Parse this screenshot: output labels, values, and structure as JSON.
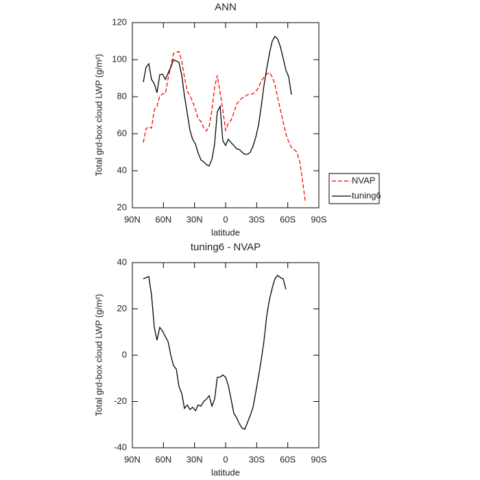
{
  "chart_data": [
    {
      "type": "line",
      "title": "ANN",
      "xlabel": "latitude",
      "ylabel": "Total grd-box cloud LWP (g/m²)",
      "xlim": [
        90,
        -90
      ],
      "xticks": [
        {
          "value": 90,
          "label": "90N"
        },
        {
          "value": 60,
          "label": "60N"
        },
        {
          "value": 30,
          "label": "30N"
        },
        0,
        {
          "value": -30,
          "label": "30S"
        },
        {
          "value": -60,
          "label": "60S"
        },
        {
          "value": -90,
          "label": "90S"
        }
      ],
      "ylim": [
        20,
        120
      ],
      "yticks": [
        20,
        40,
        60,
        80,
        100,
        120
      ],
      "legend": "right",
      "x": [
        79.4,
        76.8,
        74.1,
        71.5,
        68.8,
        66.2,
        63.5,
        60.9,
        58.2,
        55.6,
        52.9,
        50.3,
        47.6,
        45,
        42.3,
        39.7,
        37,
        34.4,
        31.8,
        29.1,
        26.5,
        23.8,
        21.2,
        18.5,
        15.9,
        13.2,
        10.6,
        8,
        5.3,
        2.7,
        0,
        -2.6,
        -5.3,
        -7.9,
        -10.6,
        -13.2,
        -15.9,
        -18.5,
        -21.2,
        -23.8,
        -26.5,
        -29.1,
        -31.8,
        -34.4,
        -37,
        -39.7,
        -42.3,
        -45,
        -47.6,
        -50.3,
        -52.9,
        -55.6,
        -58.2,
        -60.9,
        -63.5,
        -66.2,
        -68.8,
        -71.5,
        -74.1,
        -76.8
      ],
      "series": [
        {
          "name": "NVAP",
          "color": "#ff0000",
          "line_style": "dashed",
          "values": [
            55.2,
            62.6,
            63.7,
            63,
            73,
            74.8,
            80.4,
            81.5,
            81.5,
            89.6,
            96.3,
            103.3,
            104,
            104.4,
            99,
            90.7,
            83,
            80.4,
            77.4,
            73,
            68.1,
            66.7,
            63.3,
            61.5,
            63.7,
            73,
            85.2,
            91.5,
            82.2,
            73,
            61.9,
            65.6,
            67.4,
            71.1,
            75.9,
            77.8,
            79.3,
            80,
            81.1,
            81.5,
            81.5,
            83,
            84.8,
            88.5,
            90.4,
            92.2,
            93,
            90.7,
            86.7,
            79.3,
            73,
            66.3,
            60,
            55.6,
            52.6,
            51.5,
            50,
            45.2,
            35.2,
            23.7
          ]
        },
        {
          "name": "tuning6",
          "color": "#000000",
          "line_style": "solid",
          "values": [
            87.8,
            95.9,
            97.8,
            89.3,
            87,
            82.2,
            91.9,
            92.2,
            89.3,
            92.6,
            95.9,
            100,
            99.3,
            98.5,
            91.5,
            80.4,
            71.1,
            61.9,
            57,
            54.4,
            49.6,
            45.9,
            44.8,
            43.3,
            42.6,
            46.3,
            54.4,
            71.9,
            74.8,
            56.3,
            53.7,
            57,
            55.2,
            53.7,
            51.9,
            51.5,
            50,
            48.9,
            48.9,
            50,
            53.3,
            58.1,
            64.8,
            74.8,
            85.9,
            95.2,
            103.3,
            110,
            112.6,
            111.1,
            107,
            100.7,
            94.4,
            90.7,
            81.1,
            null,
            null,
            null,
            null,
            null
          ]
        }
      ]
    },
    {
      "type": "line",
      "title": "tuning6 - NVAP",
      "xlabel": "latitude",
      "ylabel": "Total grd-box cloud LWP (g/m²)",
      "xlim": [
        90,
        -90
      ],
      "xticks": [
        {
          "value": 90,
          "label": "90N"
        },
        {
          "value": 60,
          "label": "60N"
        },
        {
          "value": 30,
          "label": "30N"
        },
        0,
        {
          "value": -30,
          "label": "30S"
        },
        {
          "value": -60,
          "label": "60S"
        },
        {
          "value": -90,
          "label": "90S"
        }
      ],
      "ylim": [
        -40,
        40
      ],
      "yticks": [
        -40,
        -20,
        0,
        20,
        40
      ],
      "x": [
        79.4,
        76.8,
        74.1,
        71.5,
        68.8,
        66.2,
        63.5,
        60.9,
        58.2,
        55.6,
        52.9,
        50.3,
        47.6,
        45,
        42.3,
        39.7,
        37,
        34.4,
        31.8,
        29.1,
        26.5,
        23.8,
        21.2,
        18.5,
        15.9,
        13.2,
        10.6,
        8,
        5.3,
        2.7,
        0,
        -2.6,
        -5.3,
        -7.9,
        -10.6,
        -13.2,
        -15.9,
        -18.5,
        -21.2,
        -23.8,
        -26.5,
        -29.1,
        -31.8,
        -34.4,
        -37,
        -39.7,
        -42.3,
        -45,
        -47.6,
        -50.3,
        -52.9,
        -55.6,
        -58.2
      ],
      "series": [
        {
          "color": "#000000",
          "line_style": "solid",
          "values": [
            33,
            33.5,
            34,
            26,
            12,
            6.5,
            12,
            10.5,
            8,
            6,
            0,
            -4.5,
            -6,
            -13.5,
            -16.5,
            -23,
            -21.5,
            -23.5,
            -22.5,
            -24,
            -21.5,
            -22,
            -20,
            -19,
            -17.5,
            -22,
            -19,
            -9.5,
            -9.5,
            -8.5,
            -9.5,
            -13,
            -19,
            -25,
            -27,
            -29.5,
            -31.5,
            -32,
            -29,
            -26,
            -22.5,
            -16,
            -9,
            -2,
            6,
            17,
            24,
            29,
            33,
            34.5,
            33.5,
            33,
            28.5
          ]
        }
      ]
    }
  ]
}
